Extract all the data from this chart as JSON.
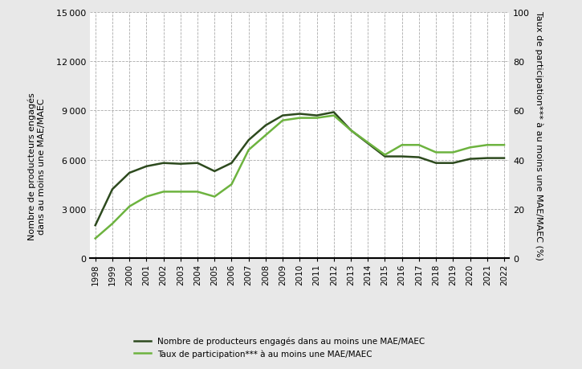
{
  "years": [
    1998,
    1999,
    2000,
    2001,
    2002,
    2003,
    2004,
    2005,
    2006,
    2007,
    2008,
    2009,
    2010,
    2011,
    2012,
    2013,
    2014,
    2015,
    2016,
    2017,
    2018,
    2019,
    2020,
    2021,
    2022
  ],
  "producers": [
    2000,
    4200,
    5200,
    5600,
    5800,
    5750,
    5800,
    5300,
    5800,
    7200,
    8100,
    8700,
    8800,
    8700,
    8900,
    7800,
    7000,
    6200,
    6200,
    6150,
    5800,
    5800,
    6050,
    6100,
    6100
  ],
  "participation_rate": [
    8,
    14,
    21,
    25,
    27,
    27,
    27,
    25,
    30,
    44,
    50,
    56,
    57,
    57,
    58,
    52,
    47,
    42,
    46,
    46,
    43,
    43,
    45,
    46,
    46
  ],
  "line1_color": "#2d4a1e",
  "line2_color": "#6db33f",
  "left_ylabel": "Nombre de producteurs engagés\ndans au moins une MAE/MAEC",
  "right_ylabel": "Taux de participation*** à au moins une MAE/MAEC (%)",
  "left_ylim": [
    0,
    15000
  ],
  "right_ylim": [
    0,
    100
  ],
  "left_yticks": [
    0,
    3000,
    6000,
    9000,
    12000,
    15000
  ],
  "right_yticks": [
    0,
    20,
    40,
    60,
    80,
    100
  ],
  "legend1": "Nombre de producteurs engagés dans au moins une MAE/MAEC",
  "legend2": "Taux de participation*** à au moins une MAE/MAEC",
  "background_color": "#e8e8e8",
  "plot_bg_color": "#ffffff",
  "grid_color": "#aaaaaa",
  "line_width": 1.8,
  "ylabel_bg_color": "#e0e0e0"
}
